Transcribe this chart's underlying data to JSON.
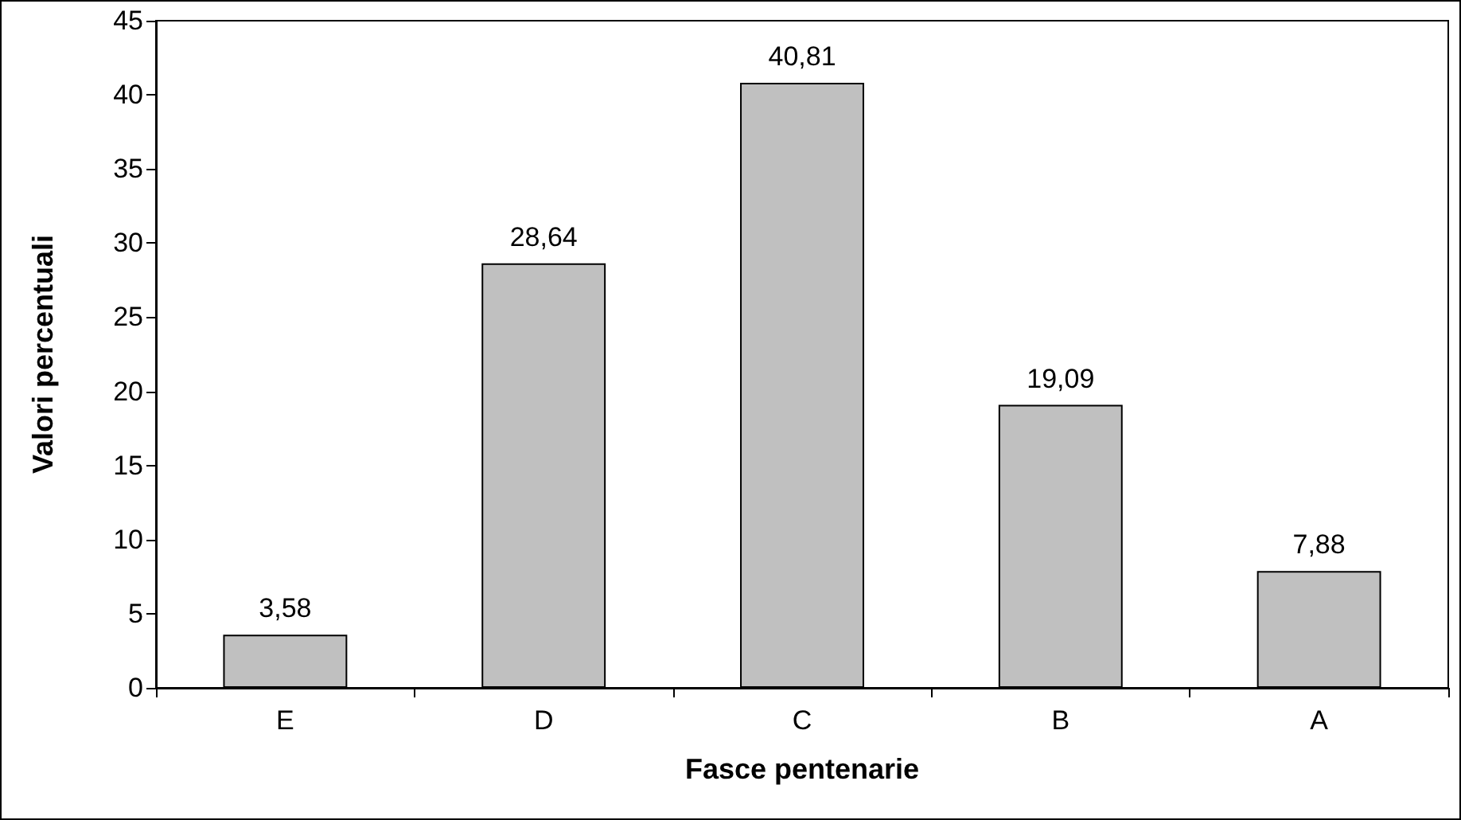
{
  "chart_data": {
    "type": "bar",
    "xlabel": "Fasce pentenarie",
    "ylabel": "Valori percentuali",
    "categories": [
      "E",
      "D",
      "C",
      "B",
      "A"
    ],
    "values": [
      3.58,
      28.64,
      40.81,
      19.09,
      7.88
    ],
    "value_labels": [
      "3,58",
      "28,64",
      "40,81",
      "19,09",
      "7,88"
    ],
    "color": "#c0c0c0",
    "ylim": [
      0,
      45
    ],
    "yticks": [
      0,
      5,
      10,
      15,
      20,
      25,
      30,
      35,
      40,
      45
    ],
    "grid": false
  }
}
